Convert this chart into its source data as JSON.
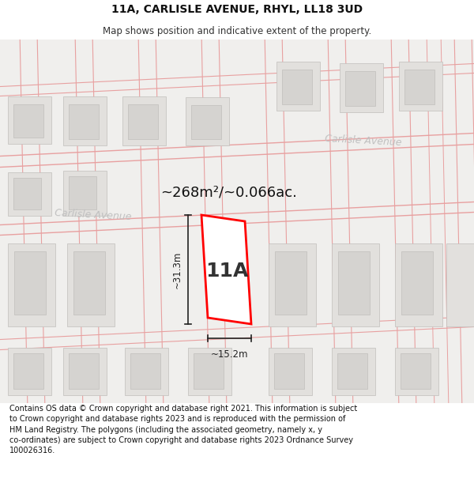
{
  "title": "11A, CARLISLE AVENUE, RHYL, LL18 3UD",
  "subtitle": "Map shows position and indicative extent of the property.",
  "footer": "Contains OS data © Crown copyright and database right 2021. This information is subject\nto Crown copyright and database rights 2023 and is reproduced with the permission of\nHM Land Registry. The polygons (including the associated geometry, namely x, y\nco-ordinates) are subject to Crown copyright and database rights 2023 Ordnance Survey\n100026316.",
  "area_label": "~268m²/~0.066ac.",
  "property_label": "11A",
  "dim_width": "~15.2m",
  "dim_height": "~31.3m",
  "street_label_left": "Carlisle Avenue",
  "street_label_right": "Carlisle Avenue",
  "map_bg": "#f0efed",
  "property_fill": "#ffffff",
  "property_edge": "#ff0000",
  "bld_color": "#e2e0dd",
  "bld_inner": "#d5d3d0",
  "road_color": "#e8a0a0",
  "dim_color": "#222222",
  "title_color": "#111111",
  "street_color": "#cccccc",
  "title_fontsize": 10,
  "subtitle_fontsize": 8.5,
  "footer_fontsize": 7.0,
  "area_fontsize": 13,
  "prop_label_fontsize": 18,
  "street_fontsize": 9,
  "dim_fontsize": 8.5
}
